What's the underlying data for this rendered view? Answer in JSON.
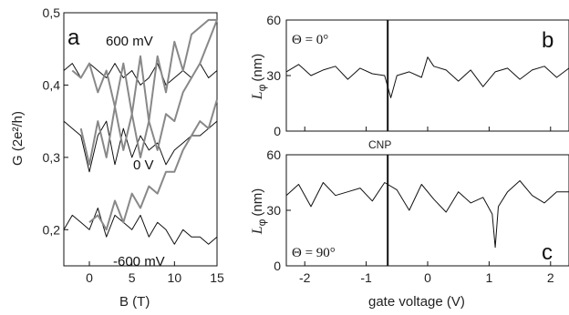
{
  "chart_data": [
    {
      "panel": "a",
      "type": "line",
      "xlabel": "B (T)",
      "ylabel": "G (2e²/h)",
      "xlim": [
        -3,
        15
      ],
      "ylim": [
        0.15,
        0.5
      ],
      "xticks": [
        0,
        5,
        10,
        15
      ],
      "yticks": [
        0.2,
        0.3,
        0.4,
        0.5
      ],
      "ytick_labels": [
        "0,2",
        "0,3",
        "0,4",
        "0,5"
      ],
      "annotations": [
        "600 mV",
        "0 V",
        "-600 mV"
      ],
      "colors": {
        "measured": "#111111",
        "fit": "#888888"
      },
      "series": [
        {
          "label": "600 mV",
          "kind": "measured",
          "x": [
            -3,
            -2,
            -1,
            0,
            1,
            2,
            3,
            4,
            5,
            6,
            7,
            8,
            9,
            10,
            11,
            12,
            13,
            14,
            15
          ],
          "y": [
            0.42,
            0.43,
            0.41,
            0.43,
            0.42,
            0.41,
            0.43,
            0.41,
            0.42,
            0.4,
            0.41,
            0.43,
            0.4,
            0.41,
            0.42,
            0.41,
            0.43,
            0.41,
            0.42
          ]
        },
        {
          "label": "600 mV",
          "kind": "fit",
          "x": [
            -2,
            -1,
            0,
            1,
            2,
            3,
            4,
            5,
            6,
            7,
            8,
            9,
            10,
            11,
            12,
            13,
            14,
            15
          ],
          "y": [
            0.42,
            0.41,
            0.43,
            0.39,
            0.42,
            0.37,
            0.43,
            0.36,
            0.44,
            0.35,
            0.44,
            0.39,
            0.46,
            0.42,
            0.47,
            0.48,
            0.49,
            0.49
          ]
        },
        {
          "label": "0 V",
          "kind": "measured",
          "x": [
            -3,
            -2,
            -1,
            0,
            1,
            2,
            3,
            4,
            5,
            6,
            7,
            8,
            9,
            10,
            11,
            12,
            13,
            14,
            15
          ],
          "y": [
            0.35,
            0.34,
            0.33,
            0.28,
            0.33,
            0.35,
            0.29,
            0.34,
            0.3,
            0.33,
            0.31,
            0.32,
            0.29,
            0.31,
            0.32,
            0.33,
            0.33,
            0.34,
            0.35
          ]
        },
        {
          "label": "0 V",
          "kind": "fit",
          "x": [
            -1,
            0,
            1,
            2,
            3,
            4,
            5,
            6,
            7,
            8,
            9,
            10,
            11,
            12,
            13,
            14,
            15
          ],
          "y": [
            0.34,
            0.29,
            0.35,
            0.3,
            0.37,
            0.31,
            0.36,
            0.3,
            0.35,
            0.31,
            0.36,
            0.35,
            0.39,
            0.41,
            0.43,
            0.46,
            0.49
          ]
        },
        {
          "label": "-600 mV",
          "kind": "measured",
          "x": [
            -3,
            -2,
            -1,
            0,
            1,
            2,
            3,
            4,
            5,
            6,
            7,
            8,
            9,
            10,
            11,
            12,
            13,
            14,
            15
          ],
          "y": [
            0.2,
            0.22,
            0.21,
            0.2,
            0.23,
            0.19,
            0.22,
            0.21,
            0.2,
            0.22,
            0.19,
            0.21,
            0.2,
            0.18,
            0.2,
            0.19,
            0.19,
            0.18,
            0.19
          ]
        },
        {
          "label": "-600 mV",
          "kind": "fit",
          "x": [
            0,
            1,
            2,
            3,
            4,
            5,
            6,
            7,
            8,
            9,
            10,
            11,
            12,
            13,
            14,
            15
          ],
          "y": [
            0.21,
            0.22,
            0.2,
            0.24,
            0.21,
            0.25,
            0.23,
            0.26,
            0.25,
            0.28,
            0.28,
            0.31,
            0.33,
            0.35,
            0.34,
            0.38
          ]
        }
      ]
    },
    {
      "panel": "b",
      "type": "line",
      "ylabel_main": "L",
      "ylabel_sub": "φ",
      "ylabel_unit": "(nm)",
      "annotation": "Θ = 0°",
      "xlim": [
        -2.3,
        2.3
      ],
      "ylim": [
        0,
        60
      ],
      "yticks": [
        0,
        30,
        60
      ],
      "vline_x": -0.65,
      "color": "#111111",
      "series": [
        {
          "x": [
            -2.3,
            -2.1,
            -1.9,
            -1.7,
            -1.5,
            -1.3,
            -1.1,
            -0.9,
            -0.7,
            -0.6,
            -0.5,
            -0.3,
            -0.1,
            0.0,
            0.1,
            0.3,
            0.5,
            0.7,
            0.9,
            1.1,
            1.3,
            1.5,
            1.7,
            1.9,
            2.1,
            2.3
          ],
          "y": [
            32,
            36,
            30,
            33,
            35,
            28,
            34,
            31,
            30,
            18,
            30,
            32,
            29,
            40,
            35,
            33,
            27,
            33,
            24,
            32,
            34,
            28,
            33,
            35,
            29,
            34
          ]
        }
      ]
    },
    {
      "panel": "c",
      "type": "line",
      "ylabel_main": "L",
      "ylabel_sub": "φ",
      "ylabel_unit": "(nm)",
      "annotation": "Θ = 90°",
      "xlabel": "gate voltage (V)",
      "xlim": [
        -2.3,
        2.3
      ],
      "ylim": [
        0,
        60
      ],
      "xticks": [
        -2,
        -1,
        0,
        1,
        2
      ],
      "yticks": [
        0,
        30,
        60
      ],
      "vline_x": -0.65,
      "color": "#111111",
      "series": [
        {
          "x": [
            -2.3,
            -2.1,
            -1.9,
            -1.7,
            -1.5,
            -1.3,
            -1.1,
            -0.9,
            -0.7,
            -0.5,
            -0.3,
            -0.1,
            0.1,
            0.3,
            0.5,
            0.7,
            0.9,
            1.05,
            1.1,
            1.15,
            1.3,
            1.5,
            1.7,
            1.9,
            2.1,
            2.3
          ],
          "y": [
            38,
            44,
            32,
            45,
            38,
            40,
            42,
            35,
            45,
            41,
            30,
            44,
            36,
            29,
            40,
            34,
            37,
            28,
            10,
            32,
            40,
            46,
            38,
            34,
            40,
            40
          ]
        }
      ]
    }
  ],
  "center_label": "CNP"
}
